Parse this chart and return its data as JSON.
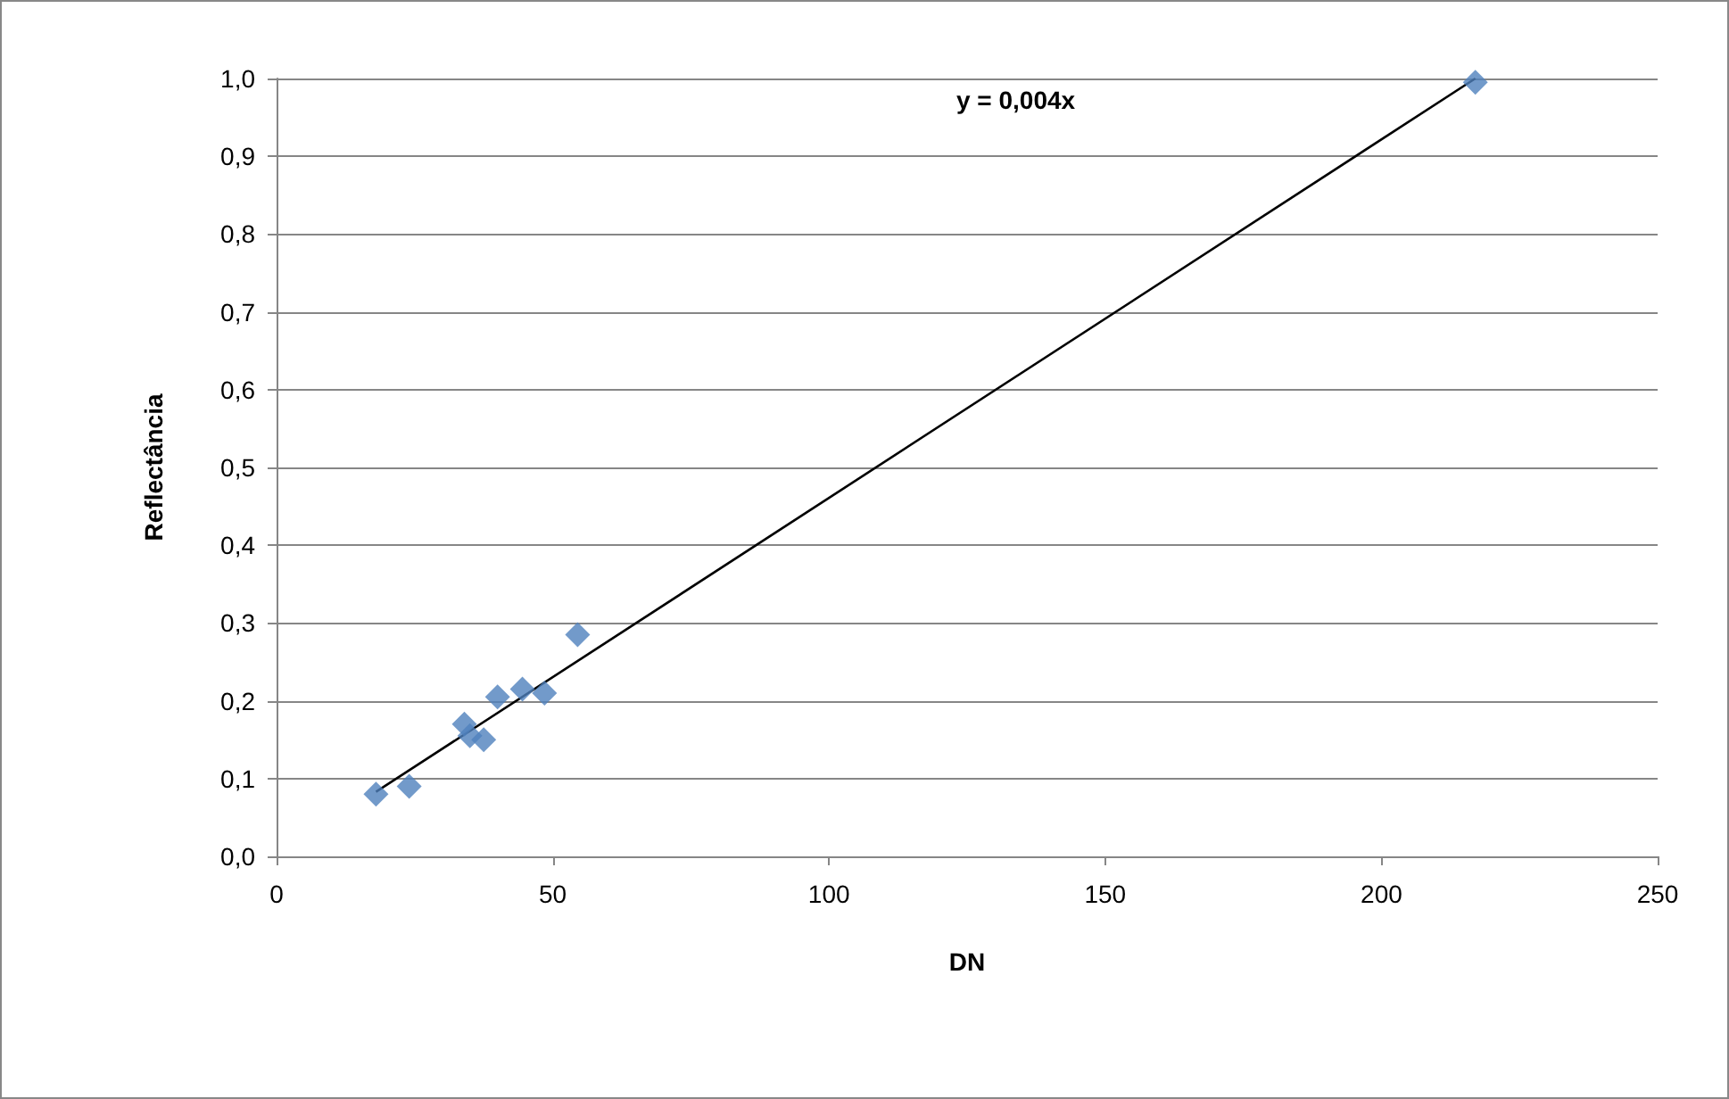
{
  "chart_data": {
    "type": "scatter",
    "xlabel": "DN",
    "ylabel": "Reflectância",
    "annotations": [
      "y = 0,004x"
    ],
    "series": [
      {
        "color": "#4f81bd",
        "marker": "diamond",
        "x": [
          18,
          24,
          34,
          35,
          37.5,
          40,
          44.5,
          48.5,
          54.5,
          217
        ],
        "values": [
          0.08,
          0.09,
          0.17,
          0.155,
          0.15,
          0.205,
          0.215,
          0.21,
          0.285,
          0.995
        ]
      },
      {
        "type": "line",
        "color": "#000000",
        "marker": "none",
        "line_style": "solid",
        "x": [
          18,
          217
        ],
        "values": [
          0.083,
          1.0
        ]
      }
    ],
    "xlim": [
      0,
      250
    ],
    "xticks": [
      0,
      50,
      100,
      150,
      200,
      250
    ],
    "ylim": [
      0,
      1
    ],
    "yticks": [
      {
        "value": 0,
        "label": "0,0"
      },
      {
        "value": 0.1,
        "label": "0,1"
      },
      {
        "value": 0.2,
        "label": "0,2"
      },
      {
        "value": 0.3,
        "label": "0,3"
      },
      {
        "value": 0.4,
        "label": "0,4"
      },
      {
        "value": 0.5,
        "label": "0,5"
      },
      {
        "value": 0.6,
        "label": "0,6"
      },
      {
        "value": 0.7,
        "label": "0,7"
      },
      {
        "value": 0.8,
        "label": "0,8"
      },
      {
        "value": 0.9,
        "label": "0,9"
      },
      {
        "value": 1,
        "label": "1,0"
      }
    ],
    "grid": "y"
  }
}
